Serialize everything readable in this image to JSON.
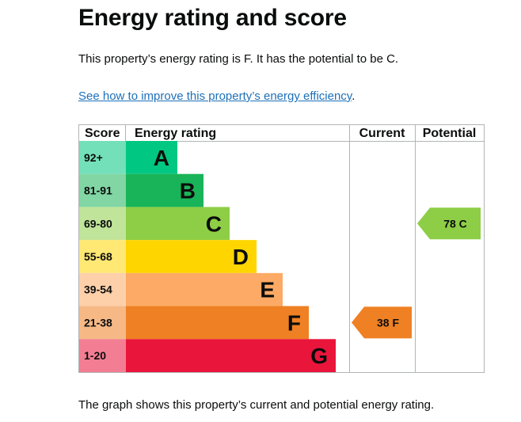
{
  "page": {
    "title": "Energy rating and score",
    "intro": "This property’s energy rating is F. It has the potential to be C.",
    "link_text": "See how to improve this property’s energy efficiency",
    "link_suffix": ".",
    "caption": "The graph shows this property’s current and potential energy rating."
  },
  "chart_data": {
    "type": "bar",
    "headers": {
      "score": "Score",
      "rating": "Energy rating",
      "current": "Current",
      "potential": "Potential"
    },
    "bands": [
      {
        "score": "92+",
        "letter": "A",
        "color": "#00c781"
      },
      {
        "score": "81-91",
        "letter": "B",
        "color": "#19b459"
      },
      {
        "score": "69-80",
        "letter": "C",
        "color": "#8dce46"
      },
      {
        "score": "55-68",
        "letter": "D",
        "color": "#ffd500"
      },
      {
        "score": "39-54",
        "letter": "E",
        "color": "#fcaa65"
      },
      {
        "score": "21-38",
        "letter": "F",
        "color": "#ef8023"
      },
      {
        "score": "1-20",
        "letter": "G",
        "color": "#e9153b"
      }
    ],
    "current": {
      "value": 38,
      "letter": "F",
      "label": "38 F",
      "color": "#ef8023"
    },
    "potential": {
      "value": 78,
      "letter": "C",
      "label": "78 C",
      "color": "#8dce46"
    }
  }
}
